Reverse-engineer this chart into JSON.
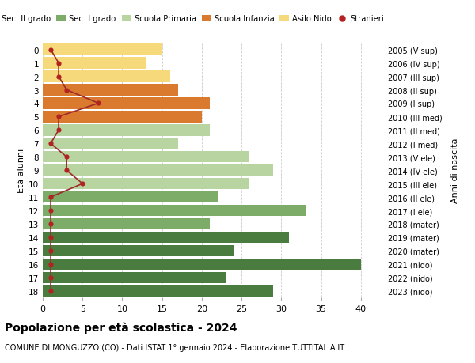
{
  "ages": [
    18,
    17,
    16,
    15,
    14,
    13,
    12,
    11,
    10,
    9,
    8,
    7,
    6,
    5,
    4,
    3,
    2,
    1,
    0
  ],
  "right_labels": [
    "2005 (V sup)",
    "2006 (IV sup)",
    "2007 (III sup)",
    "2008 (II sup)",
    "2009 (I sup)",
    "2010 (III med)",
    "2011 (II med)",
    "2012 (I med)",
    "2013 (V ele)",
    "2014 (IV ele)",
    "2015 (III ele)",
    "2016 (II ele)",
    "2017 (I ele)",
    "2018 (mater)",
    "2019 (mater)",
    "2020 (mater)",
    "2021 (nido)",
    "2022 (nido)",
    "2023 (nido)"
  ],
  "bar_values": [
    29,
    23,
    40,
    24,
    31,
    21,
    33,
    22,
    26,
    29,
    26,
    17,
    21,
    20,
    21,
    17,
    16,
    13,
    15
  ],
  "stranieri_values": [
    1,
    1,
    1,
    1,
    1,
    1,
    1,
    1,
    5,
    3,
    3,
    1,
    2,
    2,
    7,
    3,
    2,
    2,
    1
  ],
  "bar_colors": [
    "#4a7c40",
    "#4a7c40",
    "#4a7c40",
    "#4a7c40",
    "#4a7c40",
    "#7dab68",
    "#7dab68",
    "#7dab68",
    "#b8d4a0",
    "#b8d4a0",
    "#b8d4a0",
    "#b8d4a0",
    "#b8d4a0",
    "#d97a2e",
    "#d97a2e",
    "#d97a2e",
    "#f5d97a",
    "#f5d97a",
    "#f5d97a"
  ],
  "legend_labels": [
    "Sec. II grado",
    "Sec. I grado",
    "Scuola Primaria",
    "Scuola Infanzia",
    "Asilo Nido",
    "Stranieri"
  ],
  "legend_colors": [
    "#4a7c40",
    "#7dab68",
    "#b8d4a0",
    "#d97a2e",
    "#f5d97a",
    "#b22222"
  ],
  "ylabel_left": "Età alunni",
  "ylabel_right": "Anni di nascita",
  "title": "Popolazione per età scolastica - 2024",
  "subtitle": "COMUNE DI MONGUZZO (CO) - Dati ISTAT 1° gennaio 2024 - Elaborazione TUTTITALIA.IT",
  "xlim": [
    0,
    43
  ],
  "background_color": "#ffffff",
  "grid_color": "#cccccc",
  "stranieri_line_color": "#9e2a2a",
  "stranieri_marker_color": "#b22222"
}
